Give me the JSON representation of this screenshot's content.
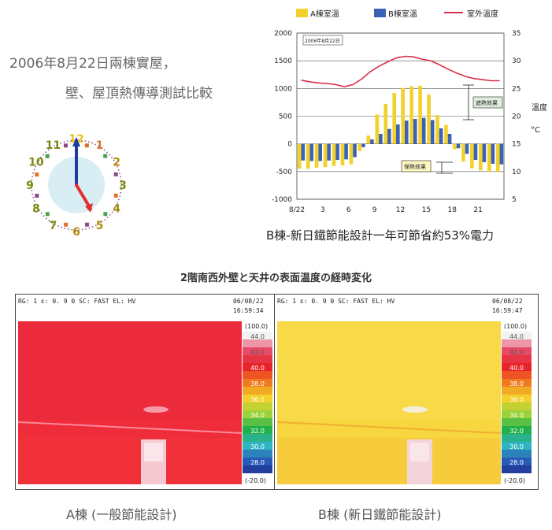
{
  "header": {
    "title_line1": "2006年8月22日兩棟實屋，",
    "title_line2": "壁、屋頂熱傳導測試比較"
  },
  "clock": {
    "numbers": [
      "12",
      "1",
      "2",
      "3",
      "4",
      "5",
      "6",
      "7",
      "8",
      "9",
      "10",
      "11"
    ],
    "hour_hand_color": "#e03030",
    "minute_hand_color": "#1b3fa0"
  },
  "chart_data": {
    "type": "bar",
    "legend": [
      "A棟室溫",
      "B棟室溫",
      "室外溫度"
    ],
    "colors": {
      "a": "#f2d22a",
      "b": "#3c62b6",
      "outdoor": "#d9304a"
    },
    "inset_label": "2006年8月22日",
    "annotation_upper": "遮熱效果",
    "annotation_lower": "保熱效果",
    "y_left": {
      "min": -1000,
      "max": 2000,
      "ticks": [
        "2000",
        "1500",
        "1000",
        "500",
        "0",
        "-500",
        "-1000"
      ]
    },
    "y_right": {
      "min": 5,
      "max": 35,
      "ticks": [
        "35",
        "30",
        "25",
        "20",
        "15",
        "10",
        "5"
      ],
      "label": "溫度",
      "unit": "°C"
    },
    "x_ticks": [
      "8/22",
      "3",
      "6",
      "9",
      "12",
      "15",
      "18",
      "21"
    ],
    "x": [
      0,
      1,
      2,
      3,
      4,
      5,
      6,
      7,
      8,
      9,
      10,
      11,
      12,
      13,
      14,
      15,
      16,
      17,
      18,
      19,
      20,
      21,
      22,
      23
    ],
    "a_values": [
      -450,
      -450,
      -430,
      -420,
      -400,
      -390,
      -370,
      -130,
      150,
      530,
      720,
      920,
      1010,
      1040,
      1050,
      890,
      520,
      340,
      -100,
      -320,
      -440,
      -480,
      -500,
      -500
    ],
    "b_values": [
      -300,
      -310,
      -310,
      -300,
      -290,
      -280,
      -240,
      -60,
      80,
      180,
      270,
      350,
      420,
      450,
      470,
      430,
      280,
      180,
      -80,
      -180,
      -290,
      -330,
      -360,
      -370
    ],
    "outdoor": [
      26.5,
      26.2,
      26.0,
      25.9,
      25.7,
      25.3,
      25.7,
      26.7,
      28.0,
      29.0,
      29.8,
      30.5,
      30.8,
      30.7,
      30.3,
      30.0,
      29.3,
      28.5,
      27.8,
      27.2,
      26.8,
      26.6,
      26.4,
      26.4
    ]
  },
  "chart_caption": "B棟-新日鐵節能設計一年可節省約53%電力",
  "thermo_title": "2階南西外壁と天井の表面温度の経時変化",
  "panels": [
    {
      "id": "A",
      "header_left": "RG: 1   ε: 0. 9 0   SC: FAST   EL: HV",
      "date": "06/08/22",
      "time": "16:59:34",
      "fill": "#ef2c3a",
      "caption": "A棟  (一般節能設計)"
    },
    {
      "id": "B",
      "header_left": "RG: 1   ε: 0. 9 0   SC: FAST   EL: HV",
      "date": "06/08/22",
      "time": "16:59:47",
      "fill": "#f7d640",
      "caption": "B棟  (新日鐵節能設計)"
    }
  ],
  "scale": {
    "top": "(100.0)",
    "bottom": "(-20.0)",
    "labels": [
      "44.0",
      "42.0",
      "40.0",
      "38.0",
      "36.0",
      "34.0",
      "32.0",
      "30.0",
      "28.0"
    ],
    "colors": [
      "#f2f2f2",
      "#e84a68",
      "#e8242a",
      "#f07a1e",
      "#f3d12a",
      "#9bd23a",
      "#22b04a",
      "#2fb5c2",
      "#2a5ab8",
      "#1b2a86"
    ]
  }
}
